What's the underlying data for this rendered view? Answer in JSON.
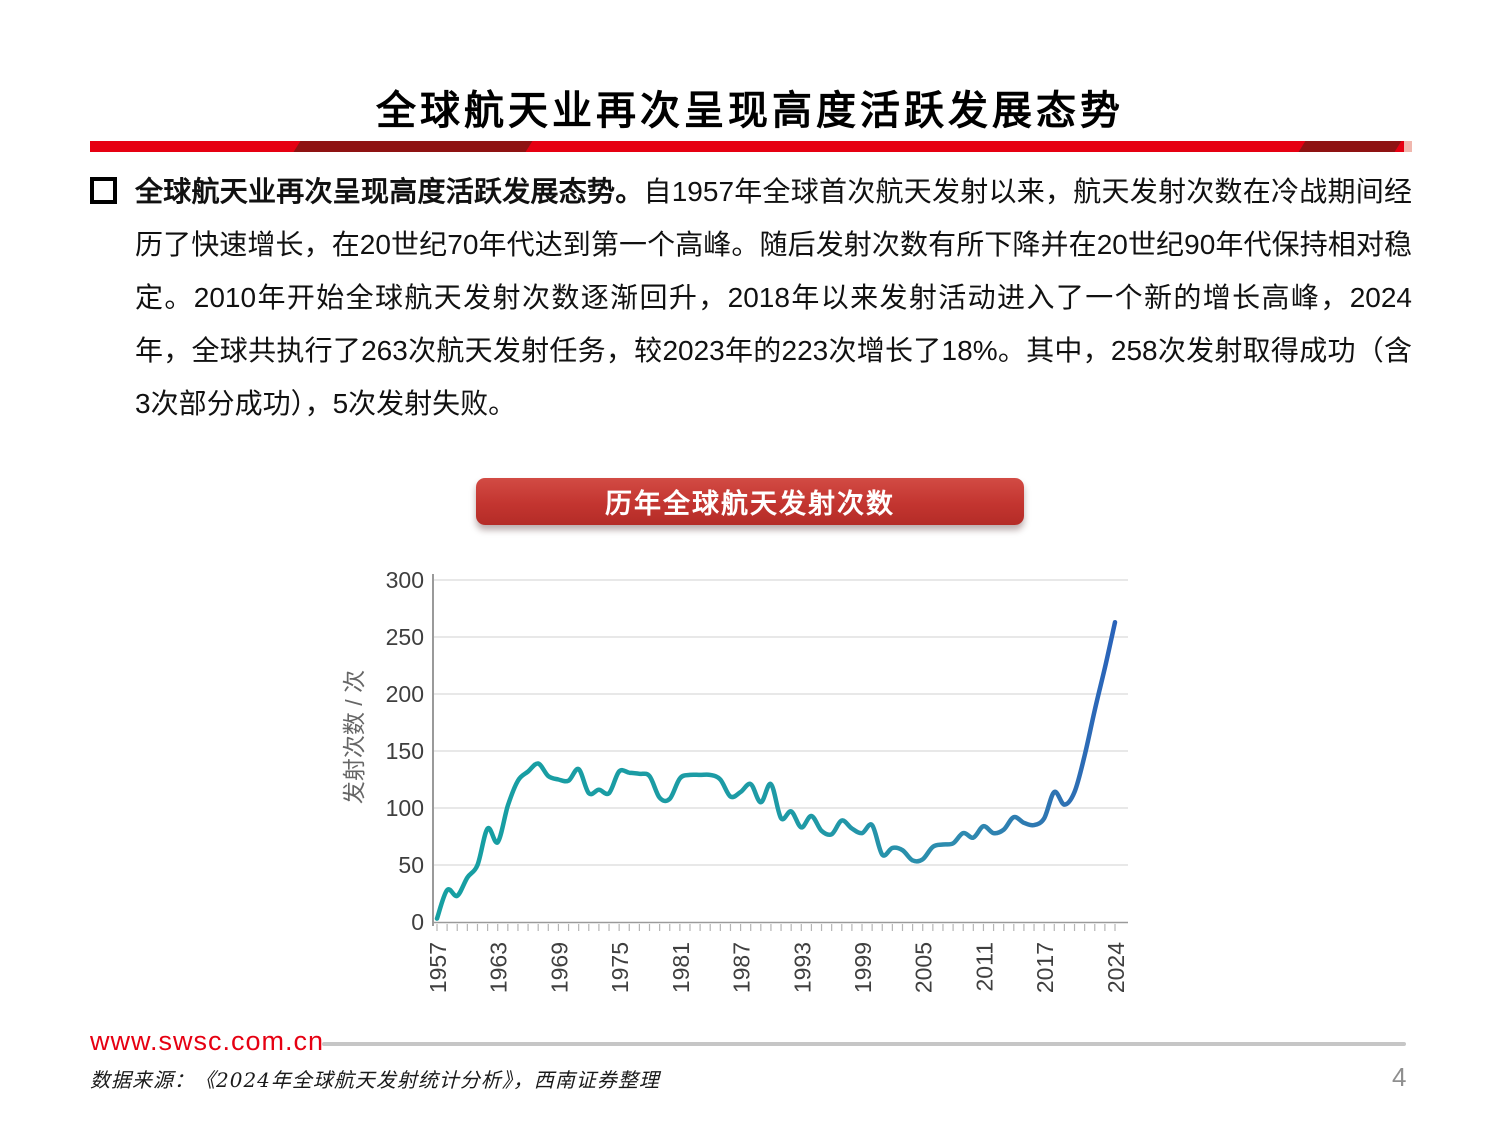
{
  "page": {
    "title": "全球航天业再次呈现高度活跃发展态势"
  },
  "body": {
    "lead_bold": "全球航天业再次呈现高度活跃发展态势。",
    "text": "自1957年全球首次航天发射以来，航天发射次数在冷战期间经历了快速增长，在20世纪70年代达到第一个高峰。随后发射次数有所下降并在20世纪90年代保持相对稳定。2010年开始全球航天发射次数逐渐回升，2018年以来发射活动进入了一个新的增长高峰，2024年，全球共执行了263次航天发射任务，较2023年的223次增长了18%。其中，258次发射取得成功（含3次部分成功），5次发射失败。"
  },
  "chart": {
    "banner_label": "历年全球航天发射次数",
    "banner_color": "#c33530"
  },
  "chart_data": {
    "type": "line",
    "title": "历年全球航天发射次数",
    "xlabel": "",
    "ylabel": "发射次数 / 次",
    "ylim": [
      0,
      300
    ],
    "y_ticks": [
      0,
      50,
      100,
      150,
      200,
      250,
      300
    ],
    "x_tick_years": [
      1957,
      1963,
      1969,
      1975,
      1981,
      1987,
      1993,
      1999,
      2005,
      2011,
      2017,
      2024
    ],
    "grid": "horizontal",
    "legend": "none",
    "line_gradient": [
      {
        "offset": 0.0,
        "color": "#169fa2"
      },
      {
        "offset": 0.55,
        "color": "#1f9aa6"
      },
      {
        "offset": 0.78,
        "color": "#2f8ab0"
      },
      {
        "offset": 0.92,
        "color": "#2e72b2"
      },
      {
        "offset": 1.0,
        "color": "#2a63ba"
      }
    ],
    "x_start_year": 1957,
    "x_end_year": 2024,
    "values": [
      3,
      28,
      23,
      39,
      50,
      82,
      70,
      102,
      124,
      132,
      139,
      128,
      125,
      124,
      134,
      113,
      116,
      113,
      132,
      131,
      130,
      128,
      109,
      108,
      126,
      129,
      129,
      129,
      125,
      110,
      114,
      121,
      105,
      121,
      91,
      97,
      83,
      93,
      80,
      77,
      89,
      82,
      78,
      85,
      59,
      65,
      63,
      54,
      55,
      66,
      68,
      69,
      78,
      74,
      84,
      78,
      81,
      92,
      87,
      85,
      91,
      114,
      103,
      114,
      146,
      186,
      223,
      263
    ]
  },
  "footer": {
    "site": "www.swsc.com.cn",
    "source": "数据来源：《2024年全球航天发射统计分析》，西南证券整理",
    "page_number": "4"
  }
}
